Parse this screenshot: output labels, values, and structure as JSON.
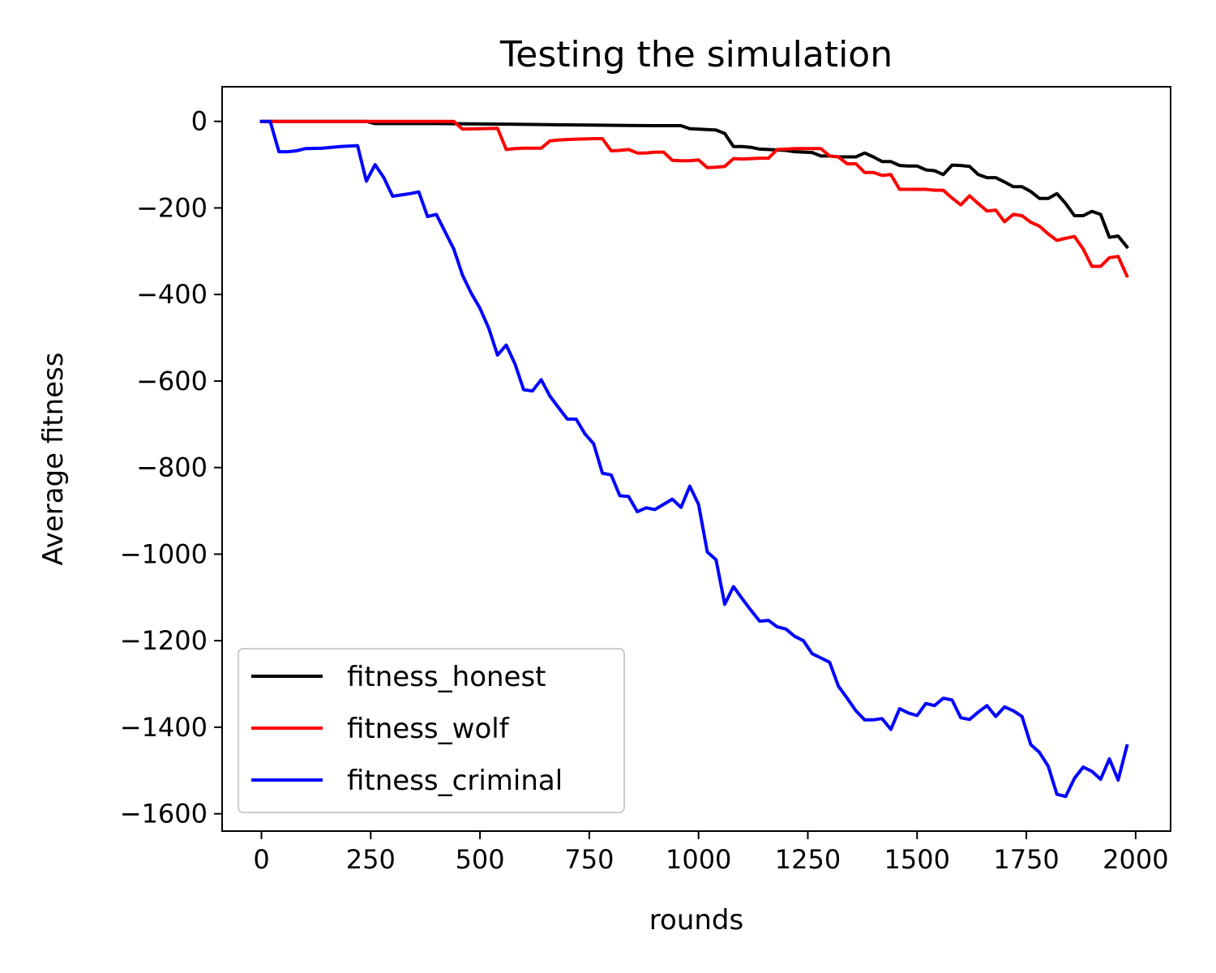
{
  "chart_data": {
    "type": "line",
    "title": "Testing the simulation",
    "xlabel": "rounds",
    "ylabel": "Average fitness",
    "xlim": [
      -90,
      2080
    ],
    "ylim": [
      -1640,
      80
    ],
    "xticks": [
      0,
      250,
      500,
      750,
      1000,
      1250,
      1500,
      1750,
      2000
    ],
    "yticks": [
      0,
      -200,
      -400,
      -600,
      -800,
      -1000,
      -1200,
      -1400,
      -1600
    ],
    "grid": false,
    "legend_position": "lower-left",
    "series": [
      {
        "name": "fitness_honest",
        "color": "#000000",
        "x": [
          0,
          20,
          40,
          100,
          200,
          240,
          260,
          300,
          400,
          500,
          600,
          700,
          800,
          900,
          960,
          980,
          1000,
          1040,
          1060,
          1080,
          1100,
          1120,
          1140,
          1160,
          1200,
          1220,
          1260,
          1280,
          1300,
          1320,
          1340,
          1360,
          1380,
          1400,
          1420,
          1440,
          1460,
          1480,
          1500,
          1520,
          1540,
          1560,
          1580,
          1600,
          1620,
          1640,
          1660,
          1680,
          1700,
          1720,
          1740,
          1760,
          1780,
          1800,
          1820,
          1840,
          1860,
          1880,
          1900,
          1920,
          1940,
          1960,
          1980
        ],
        "values": [
          0,
          0,
          0,
          0,
          0,
          0,
          -5,
          -5,
          -5,
          -6,
          -7,
          -8,
          -9,
          -10,
          -10,
          -17,
          -18,
          -20,
          -28,
          -58,
          -58,
          -60,
          -64,
          -65,
          -67,
          -70,
          -72,
          -80,
          -80,
          -82,
          -82,
          -82,
          -73,
          -82,
          -93,
          -93,
          -102,
          -103,
          -103,
          -112,
          -114,
          -123,
          -101,
          -102,
          -104,
          -123,
          -130,
          -130,
          -140,
          -151,
          -151,
          -162,
          -178,
          -178,
          -167,
          -190,
          -218,
          -218,
          -208,
          -215,
          -268,
          -265,
          -290
        ]
      },
      {
        "name": "fitness_wolf",
        "color": "#ff0000",
        "x": [
          0,
          20,
          40,
          100,
          200,
          300,
          400,
          440,
          460,
          500,
          540,
          560,
          580,
          600,
          620,
          640,
          660,
          680,
          700,
          720,
          760,
          780,
          800,
          820,
          840,
          860,
          880,
          900,
          920,
          940,
          960,
          980,
          1000,
          1020,
          1040,
          1060,
          1080,
          1100,
          1120,
          1140,
          1160,
          1180,
          1200,
          1220,
          1260,
          1280,
          1300,
          1320,
          1340,
          1360,
          1380,
          1400,
          1420,
          1440,
          1460,
          1500,
          1520,
          1540,
          1560,
          1580,
          1600,
          1620,
          1640,
          1660,
          1680,
          1700,
          1720,
          1740,
          1760,
          1780,
          1800,
          1820,
          1840,
          1860,
          1880,
          1900,
          1920,
          1940,
          1960,
          1980
        ],
        "values": [
          0,
          0,
          0,
          0,
          0,
          0,
          0,
          0,
          -18,
          -17,
          -16,
          -65,
          -63,
          -62,
          -62,
          -62,
          -45,
          -43,
          -42,
          -41,
          -40,
          -40,
          -68,
          -67,
          -65,
          -73,
          -73,
          -71,
          -71,
          -90,
          -91,
          -91,
          -89,
          -107,
          -106,
          -104,
          -86,
          -87,
          -86,
          -85,
          -85,
          -65,
          -64,
          -63,
          -63,
          -63,
          -80,
          -82,
          -98,
          -98,
          -118,
          -118,
          -125,
          -123,
          -157,
          -157,
          -157,
          -159,
          -159,
          -177,
          -193,
          -172,
          -190,
          -207,
          -205,
          -232,
          -215,
          -218,
          -233,
          -242,
          -260,
          -275,
          -270,
          -266,
          -295,
          -335,
          -335,
          -315,
          -312,
          -357
        ]
      },
      {
        "name": "fitness_criminal",
        "color": "#0000ff",
        "x": [
          0,
          20,
          40,
          60,
          80,
          100,
          140,
          180,
          220,
          240,
          260,
          280,
          300,
          320,
          340,
          360,
          380,
          400,
          420,
          440,
          460,
          480,
          500,
          520,
          540,
          560,
          580,
          600,
          620,
          640,
          660,
          680,
          700,
          720,
          740,
          760,
          780,
          800,
          820,
          840,
          860,
          880,
          900,
          920,
          940,
          960,
          980,
          1000,
          1020,
          1040,
          1060,
          1080,
          1100,
          1120,
          1140,
          1160,
          1180,
          1200,
          1220,
          1240,
          1260,
          1280,
          1300,
          1320,
          1340,
          1360,
          1380,
          1400,
          1420,
          1440,
          1460,
          1480,
          1500,
          1520,
          1540,
          1560,
          1580,
          1600,
          1620,
          1640,
          1660,
          1680,
          1700,
          1720,
          1740,
          1760,
          1780,
          1800,
          1820,
          1840,
          1860,
          1880,
          1900,
          1920,
          1940,
          1960,
          1980
        ],
        "values": [
          0,
          0,
          -70,
          -70,
          -68,
          -63,
          -62,
          -58,
          -56,
          -138,
          -100,
          -130,
          -173,
          -170,
          -167,
          -163,
          -220,
          -215,
          -255,
          -295,
          -355,
          -397,
          -432,
          -478,
          -540,
          -517,
          -560,
          -620,
          -623,
          -597,
          -635,
          -662,
          -688,
          -688,
          -722,
          -745,
          -813,
          -817,
          -865,
          -867,
          -902,
          -893,
          -897,
          -885,
          -873,
          -892,
          -843,
          -885,
          -995,
          -1013,
          -1116,
          -1075,
          -1103,
          -1130,
          -1155,
          -1153,
          -1168,
          -1173,
          -1190,
          -1200,
          -1230,
          -1240,
          -1250,
          -1305,
          -1333,
          -1362,
          -1383,
          -1383,
          -1380,
          -1405,
          -1357,
          -1367,
          -1373,
          -1345,
          -1350,
          -1333,
          -1337,
          -1378,
          -1382,
          -1365,
          -1350,
          -1375,
          -1353,
          -1362,
          -1375,
          -1440,
          -1458,
          -1490,
          -1555,
          -1560,
          -1518,
          -1492,
          -1502,
          -1520,
          -1473,
          -1522,
          -1443
        ]
      }
    ]
  }
}
